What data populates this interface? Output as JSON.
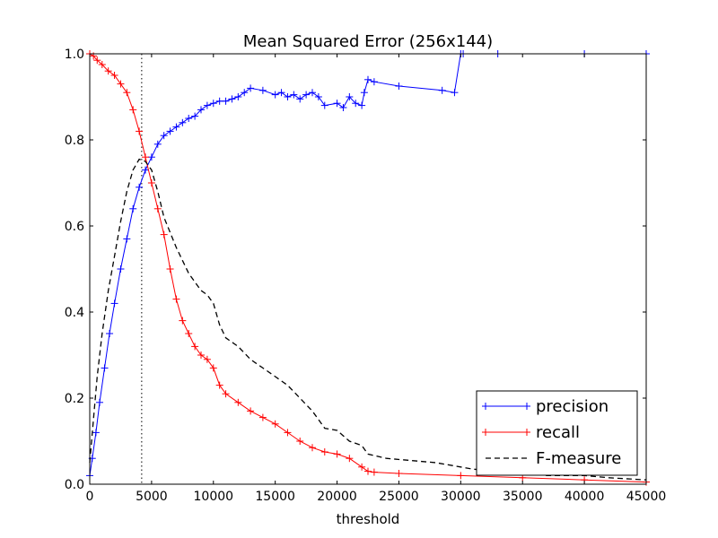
{
  "chart_data": {
    "type": "line",
    "title": "Mean Squared Error (256x144)",
    "xlabel": "threshold",
    "ylabel": "",
    "xlim": [
      0,
      45000
    ],
    "ylim": [
      0.0,
      1.0
    ],
    "xticks": [
      0,
      5000,
      10000,
      15000,
      20000,
      25000,
      30000,
      35000,
      40000,
      45000
    ],
    "xtick_labels": [
      "0",
      "5000",
      "10000",
      "15000",
      "20000",
      "25000",
      "30000",
      "35000",
      "40000",
      "45000"
    ],
    "yticks": [
      0.0,
      0.2,
      0.4,
      0.6,
      0.8,
      1.0
    ],
    "ytick_labels": [
      "0.0",
      "0.2",
      "0.4",
      "0.6",
      "0.8",
      "1.0"
    ],
    "grid": false,
    "legend_position": "bottom-right",
    "vline_x": 4200,
    "series": [
      {
        "name": "precision",
        "color": "#0000ff",
        "marker": "plus",
        "line": "solid",
        "x": [
          0,
          200,
          500,
          800,
          1200,
          1600,
          2000,
          2500,
          3000,
          3500,
          4000,
          4500,
          5000,
          5500,
          6000,
          6500,
          7000,
          7500,
          8000,
          8500,
          9000,
          9500,
          10000,
          10500,
          11000,
          11500,
          12000,
          12500,
          13000,
          14000,
          15000,
          15500,
          16000,
          16500,
          17000,
          17500,
          18000,
          18500,
          19000,
          20000,
          20500,
          21000,
          21500,
          22000,
          22200,
          22500,
          23000,
          25000,
          28500,
          29500,
          30000,
          30200,
          33000,
          40000,
          45000
        ],
        "y": [
          0.02,
          0.06,
          0.12,
          0.19,
          0.27,
          0.35,
          0.42,
          0.5,
          0.57,
          0.64,
          0.69,
          0.73,
          0.76,
          0.79,
          0.81,
          0.82,
          0.83,
          0.84,
          0.85,
          0.855,
          0.87,
          0.88,
          0.885,
          0.89,
          0.89,
          0.895,
          0.9,
          0.91,
          0.92,
          0.915,
          0.905,
          0.91,
          0.9,
          0.905,
          0.895,
          0.905,
          0.91,
          0.9,
          0.88,
          0.885,
          0.875,
          0.9,
          0.885,
          0.88,
          0.91,
          0.94,
          0.935,
          0.925,
          0.915,
          0.91,
          1.0,
          1.0,
          1.0,
          1.0,
          1.0
        ]
      },
      {
        "name": "recall",
        "color": "#ff0000",
        "marker": "plus",
        "line": "solid",
        "x": [
          0,
          300,
          600,
          1000,
          1500,
          2000,
          2500,
          3000,
          3500,
          4000,
          4500,
          5000,
          5500,
          6000,
          6500,
          7000,
          7500,
          8000,
          8500,
          9000,
          9500,
          10000,
          10500,
          11000,
          12000,
          13000,
          14000,
          15000,
          16000,
          17000,
          18000,
          19000,
          20000,
          21000,
          22000,
          22500,
          23000,
          25000,
          30000,
          35000,
          40000,
          45000
        ],
        "y": [
          1.0,
          0.995,
          0.985,
          0.975,
          0.96,
          0.95,
          0.93,
          0.91,
          0.87,
          0.82,
          0.76,
          0.7,
          0.64,
          0.58,
          0.5,
          0.43,
          0.38,
          0.35,
          0.32,
          0.3,
          0.29,
          0.27,
          0.23,
          0.21,
          0.19,
          0.17,
          0.155,
          0.14,
          0.12,
          0.1,
          0.085,
          0.075,
          0.07,
          0.06,
          0.04,
          0.03,
          0.028,
          0.025,
          0.02,
          0.015,
          0.01,
          0.005
        ]
      },
      {
        "name": "F-measure",
        "color": "#000000",
        "marker": "none",
        "line": "dashed",
        "x": [
          0,
          300,
          600,
          1000,
          1500,
          2000,
          2500,
          3000,
          3500,
          4000,
          4500,
          5000,
          5500,
          6000,
          7000,
          8000,
          9000,
          9500,
          10000,
          10500,
          11000,
          12000,
          13000,
          14000,
          15000,
          16000,
          17000,
          18000,
          19000,
          20000,
          21000,
          22000,
          22500,
          24000,
          26000,
          28000,
          30000,
          31000,
          33000,
          35000,
          37000,
          40000,
          42000,
          45000
        ],
        "y": [
          0.05,
          0.15,
          0.25,
          0.35,
          0.45,
          0.53,
          0.61,
          0.68,
          0.73,
          0.755,
          0.75,
          0.73,
          0.68,
          0.62,
          0.55,
          0.49,
          0.45,
          0.44,
          0.42,
          0.37,
          0.34,
          0.32,
          0.29,
          0.27,
          0.25,
          0.23,
          0.2,
          0.17,
          0.13,
          0.125,
          0.1,
          0.09,
          0.07,
          0.06,
          0.055,
          0.05,
          0.04,
          0.035,
          0.03,
          0.025,
          0.02,
          0.02,
          0.015,
          0.01
        ]
      }
    ]
  }
}
